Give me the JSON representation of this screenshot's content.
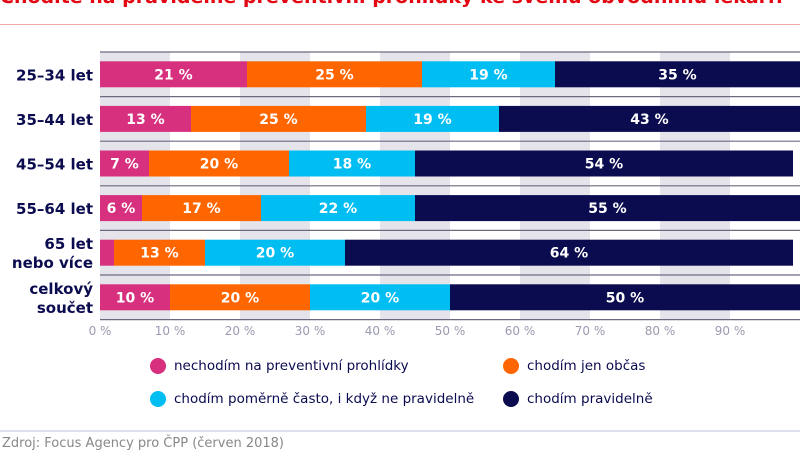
{
  "title": "Chodíte na pravidelné preventivní prohlídky ke svému obvodnímu lékaři?",
  "source": "Zdroj: Focus Agency pro ČPP (červen 2018)",
  "chart_data": {
    "type": "bar",
    "orientation": "horizontal",
    "stacked": true,
    "categories": [
      [
        "25–34 let"
      ],
      [
        "35–44 let"
      ],
      [
        "45–54 let"
      ],
      [
        "55–64 let"
      ],
      [
        "65 let",
        "nebo více"
      ],
      [
        "celkový",
        "součet"
      ]
    ],
    "series": [
      {
        "name": "nechodím na preventivní prohlídky",
        "color": "#d6307e",
        "values": [
          21,
          13,
          7,
          6,
          2,
          10
        ]
      },
      {
        "name": "chodím jen občas",
        "color": "#ff6600",
        "values": [
          25,
          25,
          20,
          17,
          13,
          20
        ]
      },
      {
        "name": "chodím poměrně často, i když ne pravidelně",
        "color": "#00bdf2",
        "values": [
          19,
          19,
          18,
          22,
          20,
          20
        ]
      },
      {
        "name": "chodím pravidelně",
        "color": "#0b0b4f",
        "values": [
          35,
          43,
          54,
          55,
          64,
          50
        ]
      }
    ],
    "xlim": [
      0,
      100
    ],
    "xticks": [
      "0 %",
      "10 %",
      "20 %",
      "30 %",
      "40 %",
      "50 %",
      "60 %",
      "70 %",
      "80 %",
      "90 %"
    ],
    "legend": "bottom"
  }
}
